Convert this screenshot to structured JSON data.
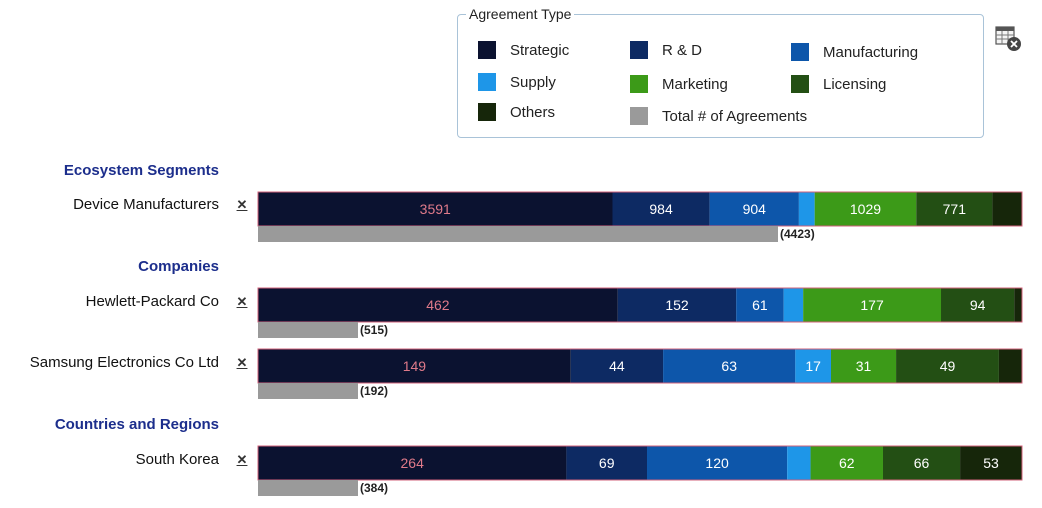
{
  "legend": {
    "title": "Agreement Type",
    "items": [
      {
        "label": "Strategic",
        "color": "#0b1230"
      },
      {
        "label": "R & D",
        "color": "#0d2a63"
      },
      {
        "label": "Manufacturing",
        "color": "#0d56aa"
      },
      {
        "label": "Supply",
        "color": "#1e96e8"
      },
      {
        "label": "Marketing",
        "color": "#3c9a18"
      },
      {
        "label": "Licensing",
        "color": "#234f14"
      },
      {
        "label": "Others",
        "color": "#16260a"
      },
      {
        "label": "Total # of Agreements",
        "color": "#9a9a9a"
      }
    ]
  },
  "icons": {
    "settings": "table-settings-icon",
    "remove": "remove-icon"
  },
  "sections": [
    {
      "heading": "Ecosystem Segments"
    },
    {
      "heading": "Companies"
    },
    {
      "heading": "Countries and Regions"
    }
  ],
  "chart_data": {
    "type": "bar",
    "orientation": "horizontal",
    "stacked": true,
    "series_names": [
      "Strategic",
      "R & D",
      "Manufacturing",
      "Supply",
      "Marketing",
      "Licensing",
      "Others"
    ],
    "rows": [
      {
        "section": "Ecosystem Segments",
        "label": "Device Manufacturers",
        "values": [
          3591,
          984,
          904,
          160,
          1029,
          771,
          300
        ],
        "labels": [
          "3591",
          "984",
          "904",
          "",
          "1029",
          "771",
          ""
        ],
        "total": 4423,
        "total_label": "(4423)"
      },
      {
        "section": "Companies",
        "label": "Hewlett-Packard Co",
        "values": [
          462,
          152,
          61,
          25,
          177,
          94,
          10
        ],
        "labels": [
          "462",
          "152",
          "61",
          "",
          "177",
          "94",
          ""
        ],
        "total": 515,
        "total_label": "(515)"
      },
      {
        "section": "Companies",
        "label": "Samsung Electronics Co Ltd",
        "values": [
          149,
          44,
          63,
          17,
          31,
          49,
          11
        ],
        "labels": [
          "149",
          "44",
          "63",
          "17",
          "31",
          "49",
          ""
        ],
        "total": 192,
        "total_label": "(192)"
      },
      {
        "section": "Countries and Regions",
        "label": "South Korea",
        "values": [
          264,
          69,
          120,
          20,
          62,
          66,
          53
        ],
        "labels": [
          "264",
          "69",
          "120",
          "",
          "62",
          "66",
          "53"
        ],
        "total": 384,
        "total_label": "(384)"
      }
    ]
  }
}
